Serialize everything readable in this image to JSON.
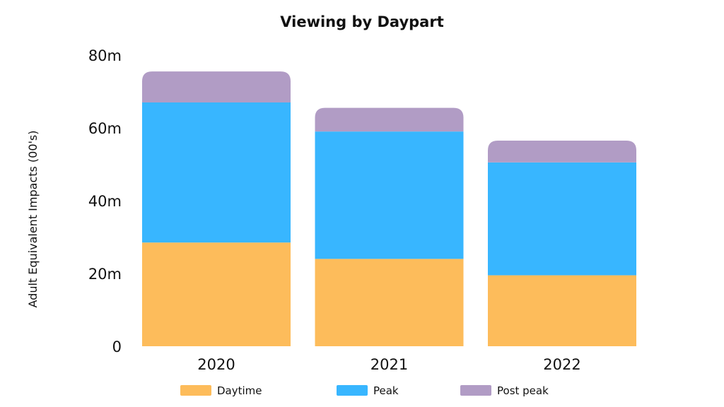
{
  "chart_data": {
    "type": "bar",
    "stacked": true,
    "title": "Viewing by Daypart",
    "xlabel": "",
    "ylabel": "Adult Equivalent Impacts (00's)",
    "categories": [
      "2020",
      "2021",
      "2022"
    ],
    "ylim": [
      0,
      80
    ],
    "yticks": [
      {
        "value": 0,
        "label": "0"
      },
      {
        "value": 20,
        "label": "20m"
      },
      {
        "value": 40,
        "label": "40m"
      },
      {
        "value": 60,
        "label": "60m"
      },
      {
        "value": 80,
        "label": "80m"
      }
    ],
    "series": [
      {
        "name": "Daytime",
        "color": "#FDBC5B",
        "values": [
          28.5,
          24,
          19.5
        ]
      },
      {
        "name": "Peak",
        "color": "#38B6FF",
        "values": [
          38.5,
          35,
          31
        ]
      },
      {
        "name": "Post peak",
        "color": "#B19CC5",
        "values": [
          8.5,
          6.5,
          6
        ]
      }
    ],
    "grid": false,
    "legend_position": "bottom"
  }
}
